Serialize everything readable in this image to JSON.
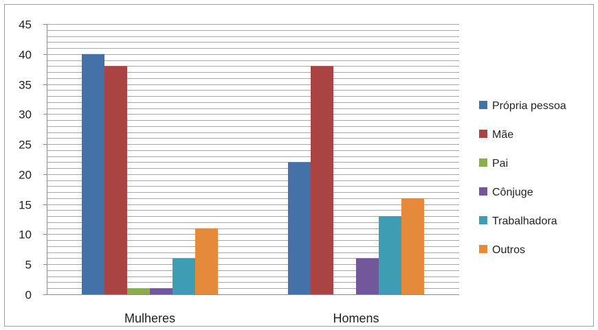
{
  "chart_data": {
    "type": "bar",
    "categories": [
      "Mulheres",
      "Homens"
    ],
    "series": [
      {
        "name": "Própria pessoa",
        "values": [
          40,
          22
        ],
        "color": "#4472a8"
      },
      {
        "name": "Mãe",
        "values": [
          38,
          38
        ],
        "color": "#a94442"
      },
      {
        "name": "Pai",
        "values": [
          1,
          0
        ],
        "color": "#8cad4e"
      },
      {
        "name": "Cônjuge",
        "values": [
          1,
          6
        ],
        "color": "#72589a"
      },
      {
        "name": "Trabalhadora",
        "values": [
          6,
          13
        ],
        "color": "#3f9db3"
      },
      {
        "name": "Outros",
        "values": [
          11,
          16
        ],
        "color": "#e48a3a"
      }
    ],
    "ylim": [
      0,
      45
    ],
    "yticks": [
      0,
      5,
      10,
      15,
      20,
      25,
      30,
      35,
      40,
      45
    ],
    "grid": true,
    "legend_position": "right"
  }
}
